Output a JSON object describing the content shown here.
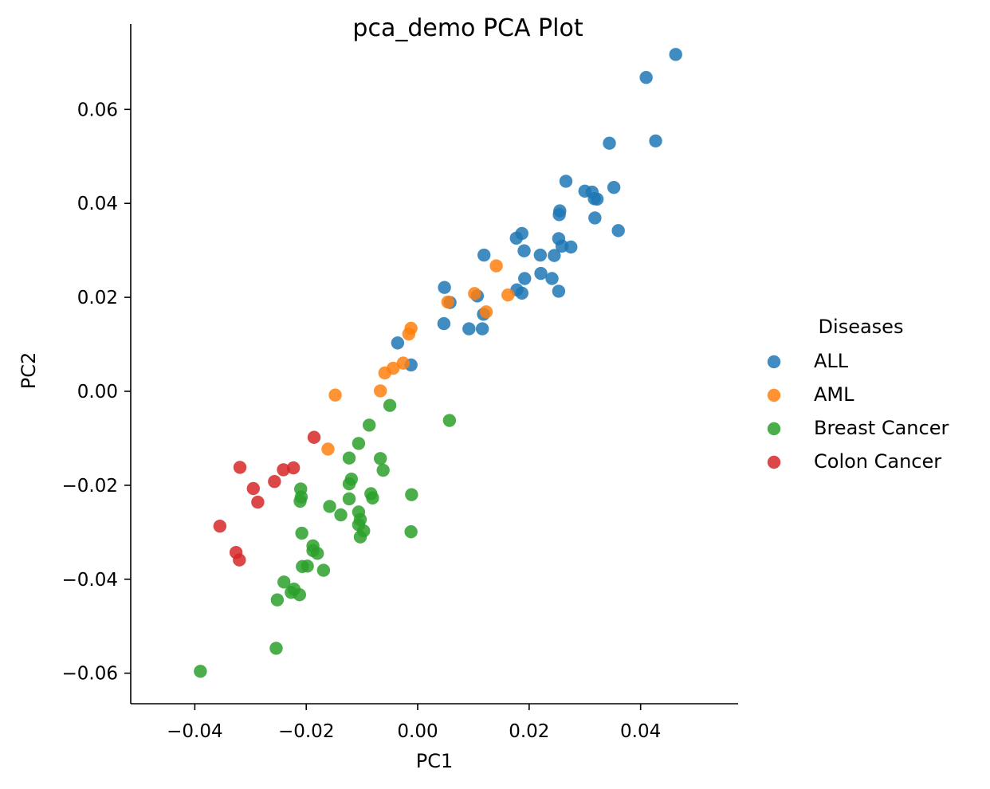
{
  "chart_data": {
    "type": "scatter",
    "title": "pca_demo PCA Plot",
    "xlabel": "PC1",
    "ylabel": "PC2",
    "xlim": [
      -0.0515,
      0.0575
    ],
    "ylim": [
      -0.0665,
      0.0782
    ],
    "xticks": [
      -0.04,
      -0.02,
      0.0,
      0.02,
      0.04
    ],
    "xtick_labels": [
      "−0.04",
      "−0.02",
      "0.00",
      "0.02",
      "0.04"
    ],
    "yticks": [
      -0.06,
      -0.04,
      -0.02,
      0.0,
      0.02,
      0.04,
      0.06
    ],
    "ytick_labels": [
      "−0.06",
      "−0.04",
      "−0.02",
      "0.00",
      "0.02",
      "0.04",
      "0.06"
    ],
    "grid": false,
    "legend": {
      "title": "Diseases",
      "placement": "right",
      "entries": [
        "ALL",
        "AML",
        "Breast Cancer",
        "Colon Cancer"
      ]
    },
    "series": [
      {
        "name": "ALL",
        "color": "#1f77b4",
        "points": [
          [
            0.0463,
            0.0717
          ],
          [
            0.041,
            0.0668
          ],
          [
            0.0427,
            0.0533
          ],
          [
            0.0344,
            0.0528
          ],
          [
            0.0266,
            0.0447
          ],
          [
            0.0352,
            0.0434
          ],
          [
            0.03,
            0.0426
          ],
          [
            0.0313,
            0.0424
          ],
          [
            0.0317,
            0.041
          ],
          [
            0.0322,
            0.0409
          ],
          [
            0.0255,
            0.0384
          ],
          [
            0.0254,
            0.0376
          ],
          [
            0.0318,
            0.0369
          ],
          [
            0.036,
            0.0342
          ],
          [
            0.0187,
            0.0336
          ],
          [
            0.0177,
            0.0326
          ],
          [
            0.0253,
            0.0325
          ],
          [
            0.0259,
            0.0309
          ],
          [
            0.0275,
            0.0307
          ],
          [
            0.0191,
            0.0299
          ],
          [
            0.0119,
            0.029
          ],
          [
            0.022,
            0.029
          ],
          [
            0.0245,
            0.0289
          ],
          [
            0.0221,
            0.0251
          ],
          [
            0.0192,
            0.024
          ],
          [
            0.0241,
            0.024
          ],
          [
            0.0048,
            0.0221
          ],
          [
            0.0178,
            0.0216
          ],
          [
            0.0253,
            0.0213
          ],
          [
            0.0187,
            0.0209
          ],
          [
            0.0107,
            0.0203
          ],
          [
            0.0058,
            0.0189
          ],
          [
            0.0118,
            0.0164
          ],
          [
            0.0047,
            0.0144
          ],
          [
            0.0092,
            0.0133
          ],
          [
            0.0116,
            0.0133
          ],
          [
            -0.0036,
            0.0103
          ],
          [
            -0.0012,
            0.0056
          ]
        ]
      },
      {
        "name": "AML",
        "color": "#ff7f0e",
        "points": [
          [
            0.0141,
            0.0267
          ],
          [
            0.0102,
            0.0208
          ],
          [
            0.0162,
            0.0205
          ],
          [
            0.0054,
            0.019
          ],
          [
            0.0123,
            0.0169
          ],
          [
            -0.0012,
            0.0134
          ],
          [
            -0.0016,
            0.0122
          ],
          [
            -0.0026,
            0.006
          ],
          [
            -0.0044,
            0.0049
          ],
          [
            -0.0059,
            0.0039
          ],
          [
            -0.0067,
            0.0001
          ],
          [
            -0.0148,
            -0.0008
          ],
          [
            -0.0161,
            -0.0123
          ]
        ]
      },
      {
        "name": "Breast Cancer",
        "color": "#2ca02c",
        "points": [
          [
            0.0057,
            -0.0062
          ],
          [
            -0.005,
            -0.003
          ],
          [
            -0.0087,
            -0.0072
          ],
          [
            -0.0106,
            -0.0111
          ],
          [
            -0.0123,
            -0.0142
          ],
          [
            -0.0067,
            -0.0143
          ],
          [
            -0.0062,
            -0.0168
          ],
          [
            -0.0119,
            -0.0187
          ],
          [
            -0.0123,
            -0.0197
          ],
          [
            -0.021,
            -0.0208
          ],
          [
            -0.0209,
            -0.0225
          ],
          [
            -0.0011,
            -0.022
          ],
          [
            -0.0084,
            -0.0218
          ],
          [
            -0.0081,
            -0.0227
          ],
          [
            -0.0123,
            -0.0229
          ],
          [
            -0.0211,
            -0.0234
          ],
          [
            -0.0158,
            -0.0245
          ],
          [
            -0.0106,
            -0.0257
          ],
          [
            -0.0138,
            -0.0263
          ],
          [
            -0.0103,
            -0.0273
          ],
          [
            -0.0106,
            -0.0284
          ],
          [
            -0.0097,
            -0.0297
          ],
          [
            -0.0012,
            -0.0299
          ],
          [
            -0.0208,
            -0.0302
          ],
          [
            -0.0103,
            -0.031
          ],
          [
            -0.0188,
            -0.0329
          ],
          [
            -0.0188,
            -0.0339
          ],
          [
            -0.018,
            -0.0345
          ],
          [
            -0.0198,
            -0.0372
          ],
          [
            -0.0207,
            -0.0373
          ],
          [
            -0.0169,
            -0.0381
          ],
          [
            -0.024,
            -0.0406
          ],
          [
            -0.0222,
            -0.0421
          ],
          [
            -0.0227,
            -0.0428
          ],
          [
            -0.0212,
            -0.0433
          ],
          [
            -0.0252,
            -0.0444
          ],
          [
            -0.0254,
            -0.0547
          ],
          [
            -0.039,
            -0.0596
          ]
        ]
      },
      {
        "name": "Colon Cancer",
        "color": "#d62728",
        "points": [
          [
            -0.0186,
            -0.0098
          ],
          [
            -0.0319,
            -0.0162
          ],
          [
            -0.0223,
            -0.0163
          ],
          [
            -0.0241,
            -0.0167
          ],
          [
            -0.0257,
            -0.0192
          ],
          [
            -0.0295,
            -0.0207
          ],
          [
            -0.0287,
            -0.0236
          ],
          [
            -0.0355,
            -0.0287
          ],
          [
            -0.0326,
            -0.0343
          ],
          [
            -0.032,
            -0.0359
          ]
        ]
      }
    ]
  }
}
